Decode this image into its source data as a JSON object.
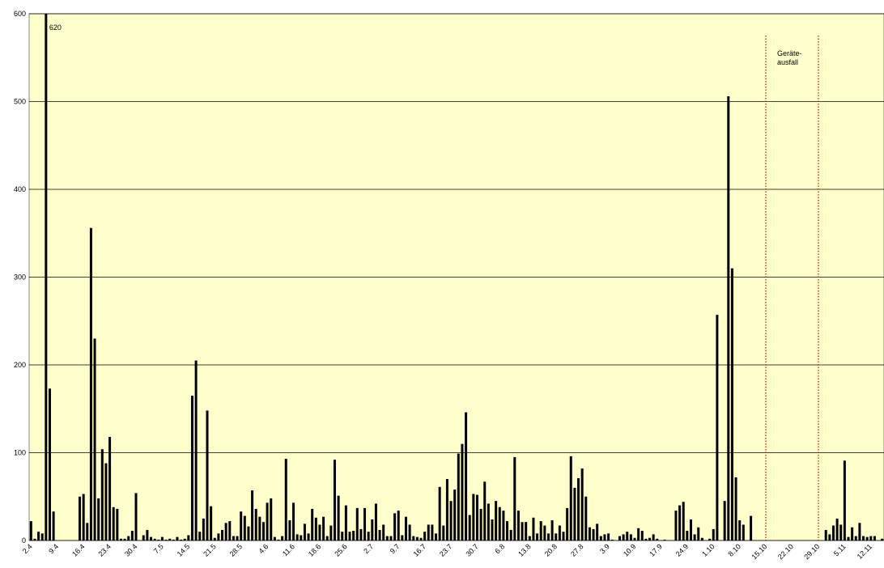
{
  "chart_data": {
    "type": "bar",
    "categories": [
      "2.4",
      null,
      null,
      null,
      null,
      null,
      null,
      "9.4",
      null,
      null,
      null,
      null,
      null,
      null,
      "16.4",
      null,
      null,
      null,
      null,
      null,
      null,
      "23.4",
      null,
      null,
      null,
      null,
      null,
      null,
      "30.4",
      null,
      null,
      null,
      null,
      null,
      null,
      "7.5",
      null,
      null,
      null,
      null,
      null,
      null,
      "14.5",
      null,
      null,
      null,
      null,
      null,
      null,
      "21.5",
      null,
      null,
      null,
      null,
      null,
      null,
      "28.5",
      null,
      null,
      null,
      null,
      null,
      null,
      "4.6",
      null,
      null,
      null,
      null,
      null,
      null,
      "11.6",
      null,
      null,
      null,
      null,
      null,
      null,
      "18.6",
      null,
      null,
      null,
      null,
      null,
      null,
      "25.6",
      null,
      null,
      null,
      null,
      null,
      null,
      "2.7",
      null,
      null,
      null,
      null,
      null,
      null,
      "9.7",
      null,
      null,
      null,
      null,
      null,
      null,
      "16.7",
      null,
      null,
      null,
      null,
      null,
      null,
      "23.7",
      null,
      null,
      null,
      null,
      null,
      null,
      "30.7",
      null,
      null,
      null,
      null,
      null,
      null,
      "6.8",
      null,
      null,
      null,
      null,
      null,
      null,
      "13.8",
      null,
      null,
      null,
      null,
      null,
      null,
      "20.8",
      null,
      null,
      null,
      null,
      null,
      null,
      "27.8",
      null,
      null,
      null,
      null,
      null,
      null,
      "3.9",
      null,
      null,
      null,
      null,
      null,
      null,
      "10.9",
      null,
      null,
      null,
      null,
      null,
      null,
      "17.9",
      null,
      null,
      null,
      null,
      null,
      null,
      "24.9",
      null,
      null,
      null,
      null,
      null,
      null,
      "1.10",
      null,
      null,
      null,
      null,
      null,
      null,
      "8.10",
      null,
      null,
      null,
      null,
      null,
      null,
      "15.10",
      null,
      null,
      null,
      null,
      null,
      null,
      "22.10",
      null,
      null,
      null,
      null,
      null,
      null,
      "29.10",
      null,
      null,
      null,
      null,
      null,
      null,
      "5.11",
      null,
      null,
      null,
      null,
      null,
      null,
      "12.11",
      null,
      null,
      null
    ],
    "values": [
      22,
      2,
      10,
      8,
      620,
      173,
      33,
      null,
      null,
      null,
      null,
      null,
      null,
      50,
      53,
      20,
      356,
      230,
      48,
      104,
      88,
      118,
      38,
      36,
      2,
      2,
      5,
      11,
      54,
      0,
      6,
      12,
      4,
      2,
      1,
      4,
      1,
      2,
      1,
      4,
      1,
      2,
      6,
      165,
      205,
      10,
      25,
      148,
      39,
      3,
      8,
      12,
      20,
      22,
      5,
      5,
      33,
      28,
      16,
      57,
      36,
      27,
      21,
      43,
      48,
      4,
      1,
      5,
      93,
      23,
      43,
      7,
      6,
      19,
      8,
      36,
      26,
      18,
      27,
      5,
      17,
      92,
      51,
      10,
      40,
      10,
      11,
      37,
      13,
      37,
      10,
      24,
      42,
      12,
      18,
      5,
      5,
      31,
      34,
      6,
      27,
      18,
      5,
      4,
      3,
      10,
      18,
      18,
      8,
      61,
      17,
      70,
      45,
      58,
      99,
      110,
      146,
      29,
      53,
      52,
      36,
      67,
      42,
      24,
      45,
      38,
      34,
      22,
      12,
      95,
      34,
      21,
      21,
      5,
      26,
      8,
      22,
      17,
      8,
      23,
      8,
      17,
      10,
      37,
      96,
      60,
      71,
      82,
      50,
      15,
      13,
      19,
      5,
      7,
      8,
      1,
      0,
      5,
      7,
      10,
      7,
      3,
      14,
      11,
      2,
      3,
      7,
      2,
      0,
      1,
      0,
      0,
      34,
      40,
      44,
      11,
      24,
      7,
      15,
      3,
      0,
      2,
      13,
      257,
      0,
      45,
      506,
      310,
      72,
      23,
      18,
      0,
      28,
      null,
      null,
      null,
      null,
      null,
      null,
      null,
      null,
      null,
      null,
      null,
      null,
      null,
      null,
      null,
      null,
      null,
      null,
      null,
      12,
      7,
      17,
      25,
      18,
      91,
      4,
      15,
      5,
      20,
      5,
      4,
      5,
      5,
      0,
      2
    ],
    "color": "#000000",
    "ylim": [
      0,
      600
    ],
    "yticks": [
      0,
      100,
      200,
      300,
      400,
      500,
      600
    ],
    "grid": true,
    "annotation": [
      "Geräte-",
      "ausfall"
    ]
  }
}
